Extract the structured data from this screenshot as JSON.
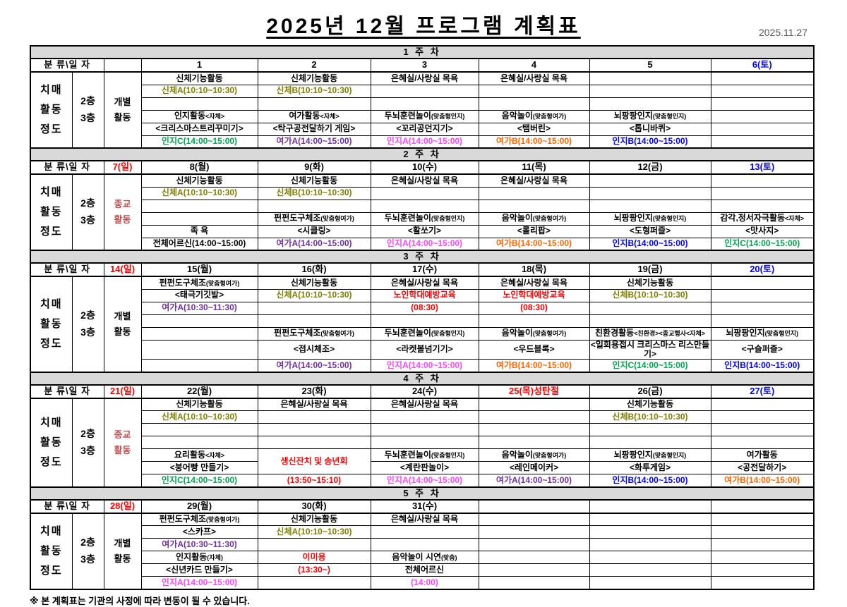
{
  "title": "2025년  12월  프로그램  계획표",
  "date": "2025.11.27",
  "footnote": "※ 본 계획표는 기관의 사정에 따라 변동이 될 수 있습니다.",
  "corner_label": "분 류\\일 자",
  "left_labels": {
    "category": "치매\n활동\n정도"
  },
  "colors": {
    "black": "#000000",
    "red": "#FF0000",
    "blue": "#0000FF",
    "olive": "#7F7F00",
    "purple": "#7030A0",
    "orange": "#FF6600",
    "magenta": "#FF44FF",
    "green": "#00A550",
    "brick": "#C0504D",
    "band_bg": "#D9D9D9",
    "date_gray": "#595959"
  },
  "weeks": [
    {
      "band": "1 주 차",
      "sunday": {
        "t": "",
        "c": "red"
      },
      "floors": "2층\n3층",
      "activity": {
        "t": "개별\n활동",
        "c": "black"
      },
      "days": [
        {
          "t": "1"
        },
        {
          "t": "2"
        },
        {
          "t": "3"
        },
        {
          "t": "4"
        },
        {
          "t": "5"
        },
        {
          "t": "6(토)",
          "c": "blue"
        }
      ],
      "rows": [
        [
          {
            "t": "신체기능활동"
          },
          {
            "t": "신체기능활동"
          },
          {
            "t": "은혜실/사랑실  목욕"
          },
          {
            "t": "은혜실/사랑실  목욕"
          },
          {},
          {}
        ],
        [
          {
            "t": "신체A(10:10~10:30)",
            "c": "olive"
          },
          {
            "t": "신체B(10:10~10:30)",
            "c": "olive"
          },
          {},
          {},
          {},
          {}
        ],
        [
          {},
          {},
          {},
          {},
          {},
          {}
        ],
        [
          {
            "t": "인지활동",
            "s": "<자체>"
          },
          {
            "t": "여가활동",
            "s": "<자체>"
          },
          {
            "t": "두뇌훈련놀이",
            "s": "(맞춤형인지)"
          },
          {
            "t": "음악놀이",
            "s": "(맞춤형여가)"
          },
          {
            "t": "뇌팡팡인지",
            "s": "(맞춤형인지)"
          },
          {}
        ],
        [
          {
            "t": "<크리스마스트리꾸미기>"
          },
          {
            "t": "<탁구공전달하기 게임>"
          },
          {
            "t": "<꼬리공던지기>"
          },
          {
            "t": "<탬버린>"
          },
          {
            "t": "<톱니바퀴>"
          },
          {}
        ],
        [
          {
            "t": "인지C(14:00~15:00)",
            "c": "green"
          },
          {
            "t": "여가A(14:00~15:00)",
            "c": "purple"
          },
          {
            "t": "인지A(14:00~15:00)",
            "c": "magenta"
          },
          {
            "t": "여가B(14:00~15:00)",
            "c": "orange"
          },
          {
            "t": "인지B(14:00~15:00)",
            "c": "blue"
          },
          {}
        ]
      ]
    },
    {
      "band": "2 주 차",
      "sunday": {
        "t": "7(일)",
        "c": "red"
      },
      "floors": "2층\n3층",
      "activity": {
        "t": "종교\n활동",
        "c": "brick"
      },
      "days": [
        {
          "t": "8(월)"
        },
        {
          "t": "9(화)"
        },
        {
          "t": "10(수)"
        },
        {
          "t": "11(목)"
        },
        {
          "t": "12(금)"
        },
        {
          "t": "13(토)",
          "c": "blue"
        }
      ],
      "rows": [
        [
          {
            "t": "신체기능활동"
          },
          {
            "t": "신체기능활동"
          },
          {
            "t": "은혜실/사랑실  목욕"
          },
          {
            "t": "은혜실/사랑실  목욕"
          },
          {},
          {}
        ],
        [
          {
            "t": "신체A(10:10~10:30)",
            "c": "olive"
          },
          {
            "t": "신체B(10:10~10:30)",
            "c": "olive"
          },
          {},
          {},
          {},
          {}
        ],
        [
          {},
          {},
          {},
          {},
          {},
          {}
        ],
        [
          {},
          {
            "t": "펀펀도구체조",
            "s": "(맞춤형여가)"
          },
          {
            "t": "두뇌훈련놀이",
            "s": "(맞춤형인지)"
          },
          {
            "t": "음악놀이",
            "s": "(맞춤형여가)"
          },
          {
            "t": "뇌팡팡인지",
            "s": "(맞춤형인지)"
          },
          {
            "t": "감각,정서자극활동",
            "s": "<자체>"
          }
        ],
        [
          {
            "t": "족 욕"
          },
          {
            "t": "<시클링>"
          },
          {
            "t": "<활쏘기>"
          },
          {
            "t": "<롤리팝>"
          },
          {
            "t": "<도형퍼즐>"
          },
          {
            "t": "<맛사지>"
          }
        ],
        [
          {
            "t": "전체어르신(14:00~15:00)"
          },
          {
            "t": "여가A(14:00~15:00)",
            "c": "purple"
          },
          {
            "t": "인지A(14:00~15:00)",
            "c": "magenta"
          },
          {
            "t": "여가B(14:00~15:00)",
            "c": "orange"
          },
          {
            "t": "인지B(14:00~15:00)",
            "c": "blue"
          },
          {
            "t": "인지C(14:00~15:00)",
            "c": "green"
          }
        ]
      ]
    },
    {
      "band": "3 주 차",
      "sunday": {
        "t": "14(일)",
        "c": "red"
      },
      "floors": "2층\n3층",
      "activity": {
        "t": "개별\n활동",
        "c": "black"
      },
      "days": [
        {
          "t": "15(월)"
        },
        {
          "t": "16(화)"
        },
        {
          "t": "17(수)"
        },
        {
          "t": "18(목)"
        },
        {
          "t": "19(금)"
        },
        {
          "t": "20(토)",
          "c": "blue"
        }
      ],
      "rows": [
        [
          {
            "t": "펀펀도구체조",
            "s": "(맞춤형여가)"
          },
          {
            "t": "신체기능활동"
          },
          {
            "t": "은혜실/사랑실  목욕"
          },
          {
            "t": "은혜실/사랑실  목욕"
          },
          {
            "t": "신체기능활동"
          },
          {}
        ],
        [
          {
            "t": "<태극기깃발>"
          },
          {
            "t": "신체A(10:10~10:30)",
            "c": "olive"
          },
          {
            "t": "노인학대예방교육",
            "c": "red"
          },
          {
            "t": "노인학대예방교육",
            "c": "red"
          },
          {
            "t": "신체B(10:10~10:30)",
            "c": "olive"
          },
          {}
        ],
        [
          {
            "t": "여가A(10:30~11:30)",
            "c": "purple"
          },
          {},
          {
            "t": "(08:30)",
            "c": "red"
          },
          {
            "t": "(08:30)",
            "c": "red"
          },
          {},
          {}
        ],
        [
          {},
          {},
          {},
          {},
          {},
          {}
        ],
        [
          {},
          {
            "t": "펀펀도구체조",
            "s": "(맞춤형여가)"
          },
          {
            "t": "두뇌훈련놀이",
            "s": "(맞춤형인지)"
          },
          {
            "t": "음악놀이",
            "s": "(맞춤형여가)"
          },
          {
            "t": "친환경활동",
            "s": "<친환경><종교행사<자체>"
          },
          {
            "t": "뇌팡팡인지",
            "s": "(맞춤형인지)"
          }
        ],
        [
          {},
          {
            "t": "<접시체조>"
          },
          {
            "t": "<라켓볼넘기기>"
          },
          {
            "t": "<우드블록>"
          },
          {
            "t": "<일회용접시 크리스마스 리스만들기>"
          },
          {
            "t": "<구슬퍼즐>"
          }
        ],
        [
          {},
          {
            "t": "여가A(14:00~15:00)",
            "c": "purple"
          },
          {
            "t": "인지A(14:00~15:00)",
            "c": "magenta"
          },
          {
            "t": "여가B(14:00~15:00)",
            "c": "orange"
          },
          {
            "t": "인지C(14:00~15:00)",
            "c": "green"
          },
          {
            "t": "인지B(14:00~15:00)",
            "c": "blue"
          }
        ]
      ]
    },
    {
      "band": "4 주 차",
      "sunday": {
        "t": "21(일)",
        "c": "red"
      },
      "floors": "2층\n3층",
      "activity": {
        "t": "종교\n활동",
        "c": "brick"
      },
      "days": [
        {
          "t": "22(월)"
        },
        {
          "t": "23(화)"
        },
        {
          "t": "24(수)"
        },
        {
          "t": "25(목)성탄절",
          "c": "red"
        },
        {
          "t": "26(금)"
        },
        {
          "t": "27(토)",
          "c": "blue"
        }
      ],
      "rows": [
        [
          {
            "t": "신체기능활동"
          },
          {
            "t": "은혜실/사랑실  목욕"
          },
          {
            "t": "은혜실/사랑실  목욕"
          },
          {},
          {
            "t": "신체기능활동"
          },
          {}
        ],
        [
          {
            "t": "신체A(10:10~10:30)",
            "c": "olive"
          },
          {},
          {},
          {},
          {
            "t": "신체B(10:10~10:30)",
            "c": "olive"
          },
          {}
        ],
        [
          {},
          {},
          {},
          {},
          {},
          {}
        ],
        [
          {},
          {},
          {},
          {},
          {},
          {}
        ],
        [
          {
            "t": "요리활동",
            "s": "<자체>"
          },
          {
            "t": "생신잔치 및 송년회",
            "c": "red",
            "rs": 2
          },
          {
            "t": "두뇌훈련놀이",
            "s": "(맞춤형인지)"
          },
          {
            "t": "음악놀이",
            "s": "(맞춤형여가)"
          },
          {
            "t": "뇌팡팡인지",
            "s": "(맞춤형인지)"
          },
          {
            "t": "여가활동"
          }
        ],
        [
          {
            "t": "<붕어빵 만들기>"
          },
          {
            "skip": true
          },
          {
            "t": "<계란판놀이>"
          },
          {
            "t": "<레인메이커>"
          },
          {
            "t": "<화투게임>"
          },
          {
            "t": "<공전달하기>"
          }
        ],
        [
          {
            "t": "인지C(14:00~15:00)",
            "c": "green"
          },
          {
            "t": "(13:50~15:10)",
            "c": "red"
          },
          {
            "t": "인지A(14:00~15:00)",
            "c": "magenta"
          },
          {
            "t": "여가A(14:00~15:00)",
            "c": "purple"
          },
          {
            "t": "인지B(14:00~15:00)",
            "c": "blue"
          },
          {
            "t": "여가B(14:00~15:00)",
            "c": "orange"
          }
        ]
      ]
    },
    {
      "band": "5 주 차",
      "sunday": {
        "t": "28(일)",
        "c": "red"
      },
      "floors": "2층\n3층",
      "activity": {
        "t": "개별\n활동",
        "c": "black"
      },
      "days": [
        {
          "t": "29(월)"
        },
        {
          "t": "30(화)"
        },
        {
          "t": "31(수)"
        },
        {
          "t": ""
        },
        {
          "t": ""
        },
        {
          "t": ""
        }
      ],
      "rows": [
        [
          {
            "t": "펀펀도구체조",
            "s": "(맞춤형여가)"
          },
          {
            "t": "신체기능활동"
          },
          {
            "t": "은혜실/사랑실  목욕"
          },
          {},
          {},
          {}
        ],
        [
          {
            "t": "<스카프>"
          },
          {
            "t": "신체A(10:10~10:30)",
            "c": "olive"
          },
          {},
          {},
          {},
          {}
        ],
        [
          {
            "t": "여가A(10:30~11:30)",
            "c": "purple"
          },
          {},
          {},
          {},
          {},
          {}
        ],
        [
          {
            "t": "인지활동",
            "s": "(자체)"
          },
          {
            "t": "이미용",
            "c": "red"
          },
          {
            "t": "음악놀이  시연",
            "s": "(맞춤)"
          },
          {},
          {},
          {}
        ],
        [
          {
            "t": "<신년카드 만들기>"
          },
          {
            "t": "(13:30~)",
            "c": "red"
          },
          {
            "t": "전체어르신"
          },
          {},
          {},
          {}
        ],
        [
          {
            "t": "인지A(14:00~15:00)",
            "c": "magenta"
          },
          {},
          {
            "t": "(14:00)",
            "c": "magenta"
          },
          {},
          {},
          {}
        ]
      ]
    }
  ]
}
